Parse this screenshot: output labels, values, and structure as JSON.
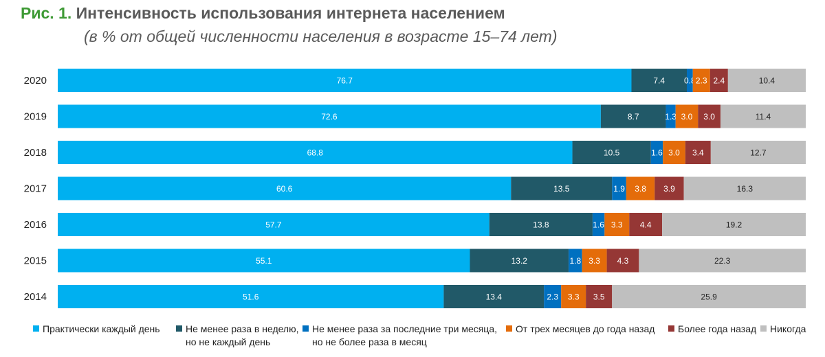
{
  "title": {
    "prefix": "Рис. 1.",
    "text": "Интенсивность использования интернета населением",
    "subtitle": "(в % от общей численности населения в возрасте 15–74 лет)"
  },
  "colors": {
    "title_prefix": "#3e9a35",
    "title_text": "#5a5a5a"
  },
  "chart_data": {
    "type": "bar",
    "orientation": "horizontal",
    "stacked": true,
    "categories": [
      "2020",
      "2019",
      "2018",
      "2017",
      "2016",
      "2015",
      "2014"
    ],
    "series": [
      {
        "name": "Практически каждый день",
        "color": "#00b0f0",
        "values": [
          76.7,
          72.6,
          68.8,
          60.6,
          57.7,
          55.1,
          51.6
        ]
      },
      {
        "name": "Не менее раза в неделю,\nно не каждый день",
        "color": "#215968",
        "values": [
          7.4,
          8.7,
          10.5,
          13.5,
          13.8,
          13.2,
          13.4
        ]
      },
      {
        "name": "Не менее раза за последние три месяца,\nно не более раза в месяц",
        "color": "#0070c0",
        "values": [
          0.8,
          1.3,
          1.6,
          1.9,
          1.6,
          1.8,
          2.3
        ]
      },
      {
        "name": "От трех месяцев до года назад",
        "color": "#e46c0a",
        "values": [
          2.3,
          3.0,
          3.0,
          3.8,
          3.3,
          3.3,
          3.3
        ]
      },
      {
        "name": "Более года назад",
        "color": "#953735",
        "values": [
          2.4,
          3.0,
          3.4,
          3.9,
          4.4,
          4.3,
          3.5
        ]
      },
      {
        "name": "Никогда",
        "color": "#bfbfbf",
        "values": [
          10.4,
          11.4,
          12.7,
          16.3,
          19.2,
          22.3,
          25.9
        ]
      }
    ],
    "xlim": [
      0,
      100
    ],
    "grid": false,
    "legend_position": "bottom"
  }
}
